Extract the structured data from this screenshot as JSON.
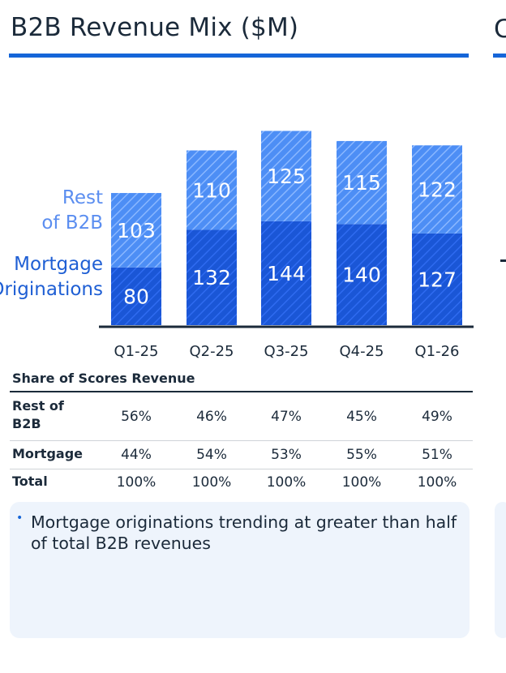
{
  "title": "B2B Revenue Mix ($M)",
  "next_panel_title_fragment": "C",
  "chart_data": {
    "type": "bar",
    "stacked": true,
    "title": "B2B Revenue Mix ($M)",
    "categories": [
      "Q1-25",
      "Q2-25",
      "Q3-25",
      "Q4-25",
      "Q1-26"
    ],
    "series": [
      {
        "name": "Mortgage Originations",
        "label_lines": [
          "Mortgage",
          "Originations"
        ],
        "values": [
          80,
          132,
          144,
          140,
          127
        ],
        "color": "#1a56d6",
        "pattern": "hatched"
      },
      {
        "name": "Rest of B2B",
        "label_lines": [
          "Rest",
          "of B2B"
        ],
        "values": [
          103,
          110,
          125,
          115,
          122
        ],
        "color": "#4d8ef5",
        "pattern": "hatched"
      }
    ],
    "ylim": [
      0,
      270
    ]
  },
  "share_table": {
    "title": "Share of Scores Revenue",
    "rows": [
      {
        "label_lines": [
          "Rest of",
          "B2B"
        ],
        "values": [
          "56%",
          "46%",
          "47%",
          "45%",
          "49%"
        ]
      },
      {
        "label_lines": [
          "Mortgage"
        ],
        "values": [
          "44%",
          "54%",
          "53%",
          "55%",
          "51%"
        ]
      },
      {
        "label_lines": [
          "Total"
        ],
        "values": [
          "100%",
          "100%",
          "100%",
          "100%",
          "100%"
        ]
      }
    ]
  },
  "note": {
    "bullet": "•",
    "text": "Mortgage originations trending at greater than half of total B2B revenues"
  },
  "colors": {
    "accent": "#1565d8",
    "mortgage": "#1a56d6",
    "rest": "#4d8ef5",
    "rest_label": "#5b8ef0",
    "mortgage_label": "#1f5fd4",
    "text": "#1b2a3a"
  }
}
